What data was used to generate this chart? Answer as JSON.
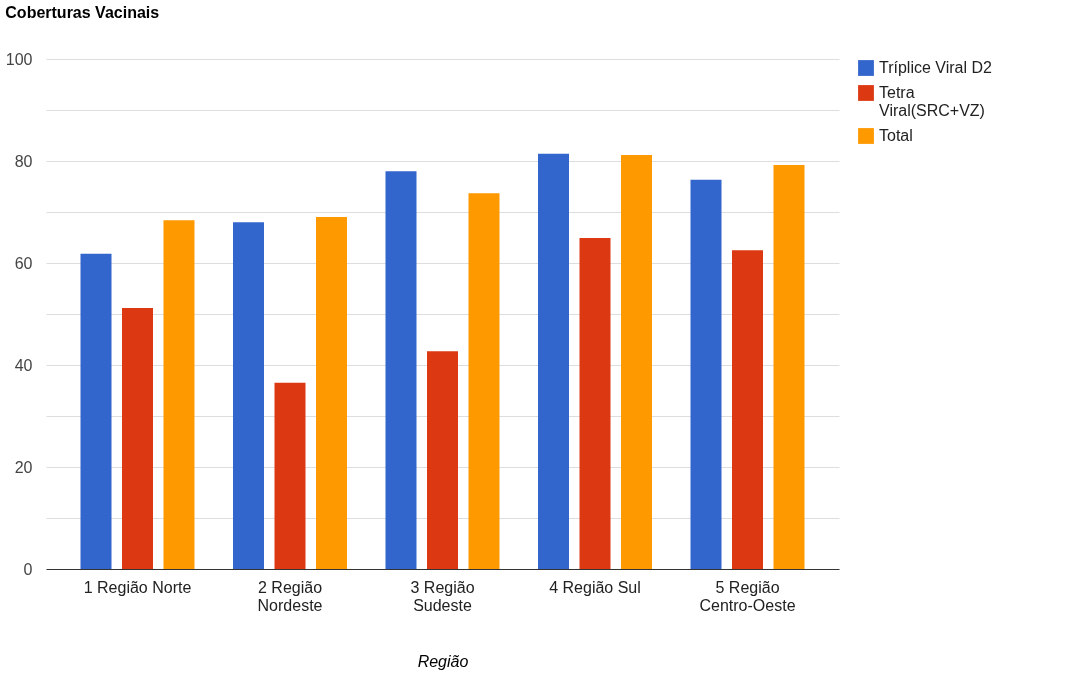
{
  "chart_data": {
    "type": "bar",
    "title": "Coberturas Vacinais",
    "xlabel": "Região",
    "categories": [
      "1 Região Norte",
      "2 Região Nordeste",
      "3 Região Sudeste",
      "4 Região Sul",
      "5 Região Centro-Oeste"
    ],
    "series": [
      {
        "name": "Tríplice Viral D2",
        "color": "#3366cc",
        "values": [
          61.8,
          68.0,
          78.0,
          81.4,
          76.3
        ]
      },
      {
        "name": "Tetra Viral(SRC+VZ)",
        "color": "#dc3912",
        "values": [
          51.2,
          36.5,
          42.7,
          64.9,
          62.5
        ]
      },
      {
        "name": "Total",
        "color": "#ff9900",
        "values": [
          68.4,
          69.0,
          73.7,
          81.2,
          79.2
        ]
      }
    ],
    "ylim": [
      0,
      100
    ],
    "yticks": [
      0,
      {
        "value": 10,
        "label": null
      },
      20,
      {
        "value": 30,
        "label": null
      },
      40,
      {
        "value": 50,
        "label": null
      },
      60,
      {
        "value": 70,
        "label": null
      },
      80,
      {
        "value": 90,
        "label": null
      },
      100
    ],
    "grid": "y",
    "legend": "top right"
  }
}
